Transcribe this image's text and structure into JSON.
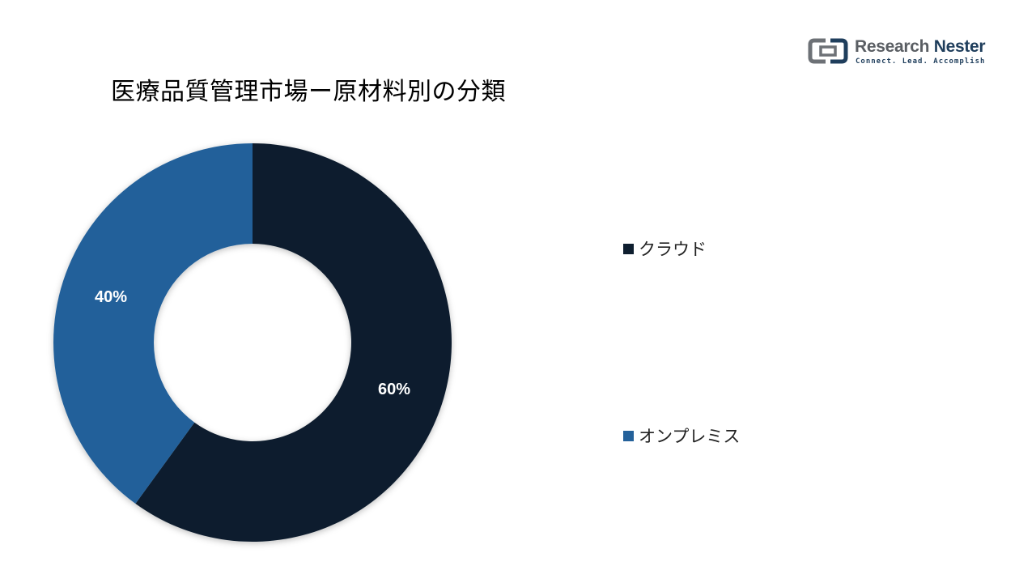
{
  "logo": {
    "name_part1": "Research ",
    "name_part2": "Nester",
    "tagline": "Connect. Lead. Accomplish"
  },
  "chart_data": {
    "type": "pie",
    "title": "医療品質管理市場ー原材料別の分類",
    "donut": true,
    "legend_position": "right",
    "series": [
      {
        "name": "クラウド",
        "value": 60,
        "label": "60%",
        "color": "#0e1e2f"
      },
      {
        "name": "オンプレミス",
        "value": 40,
        "label": "40%",
        "color": "#24619a"
      }
    ]
  }
}
